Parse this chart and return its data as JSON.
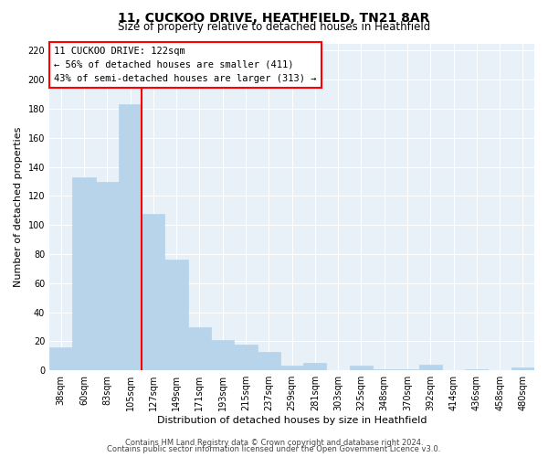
{
  "title": "11, CUCKOO DRIVE, HEATHFIELD, TN21 8AR",
  "subtitle": "Size of property relative to detached houses in Heathfield",
  "xlabel": "Distribution of detached houses by size in Heathfield",
  "ylabel": "Number of detached properties",
  "bar_labels": [
    "38sqm",
    "60sqm",
    "83sqm",
    "105sqm",
    "127sqm",
    "149sqm",
    "171sqm",
    "193sqm",
    "215sqm",
    "237sqm",
    "259sqm",
    "281sqm",
    "303sqm",
    "325sqm",
    "348sqm",
    "370sqm",
    "392sqm",
    "414sqm",
    "436sqm",
    "458sqm",
    "480sqm"
  ],
  "bar_values": [
    16,
    133,
    130,
    183,
    108,
    76,
    30,
    21,
    18,
    13,
    3,
    5,
    0,
    3,
    1,
    1,
    4,
    0,
    1,
    0,
    2
  ],
  "bar_color": "#b8d4ea",
  "bar_edge_color": "#b8d4ea",
  "vline_color": "red",
  "annotation_title": "11 CUCKOO DRIVE: 122sqm",
  "annotation_line1": "← 56% of detached houses are smaller (411)",
  "annotation_line2": "43% of semi-detached houses are larger (313) →",
  "annotation_box_color": "white",
  "annotation_box_edge": "red",
  "ylim": [
    0,
    225
  ],
  "yticks": [
    0,
    20,
    40,
    60,
    80,
    100,
    120,
    140,
    160,
    180,
    200,
    220
  ],
  "footer1": "Contains HM Land Registry data © Crown copyright and database right 2024.",
  "footer2": "Contains public sector information licensed under the Open Government Licence v3.0.",
  "bg_color": "#ffffff",
  "plot_bg_color": "#e8f0f8",
  "grid_color": "#ffffff",
  "title_fontsize": 10,
  "subtitle_fontsize": 8.5,
  "axis_label_fontsize": 8,
  "tick_fontsize": 7,
  "annotation_fontsize": 7.5,
  "footer_fontsize": 6
}
